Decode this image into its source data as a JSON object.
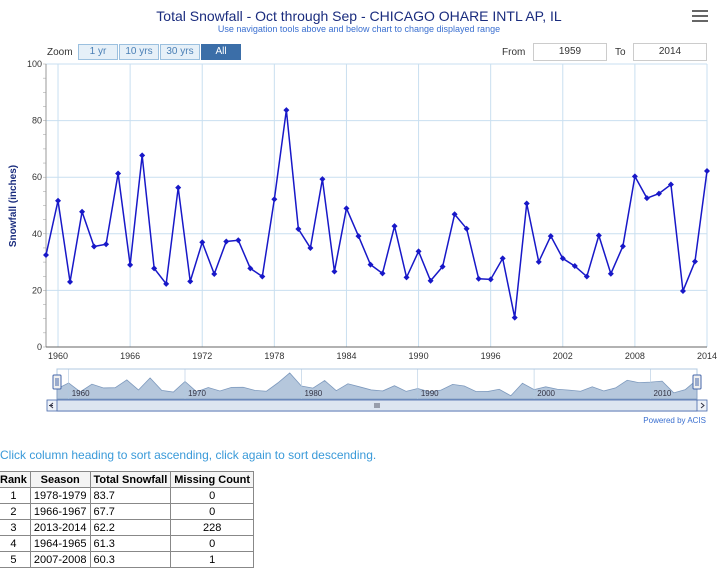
{
  "header": {
    "title": "Total Snowfall - Oct through Sep - CHICAGO OHARE INTL AP, IL",
    "subtitle": "Use navigation tools above and below chart to change displayed range"
  },
  "menu": {
    "icon": "hamburger-menu-icon"
  },
  "zoom": {
    "label": "Zoom",
    "buttons": [
      "1 yr",
      "10 yrs",
      "30 yrs",
      "All"
    ],
    "selected": "All"
  },
  "range": {
    "from_label": "From",
    "from_value": "1959",
    "to_label": "To",
    "to_value": "2014"
  },
  "colors": {
    "series": "#1818c8",
    "navigator_fill": "#b5c7dc",
    "grid": "#c9dff0",
    "accent": "#3a6fd0"
  },
  "chart_data": {
    "type": "line",
    "ylabel": "Snowfall (inches)",
    "ylim": [
      0,
      100
    ],
    "yticks": [
      0,
      20,
      40,
      60,
      80,
      100
    ],
    "xlim": [
      1959,
      2014
    ],
    "xticks": [
      1960,
      1966,
      1972,
      1978,
      1984,
      1990,
      1996,
      2002,
      2008,
      2014
    ],
    "navigator_xticks": [
      1960,
      1970,
      1980,
      1990,
      2000,
      2010
    ],
    "grid": true,
    "series": [
      {
        "x": [
          1959,
          1960,
          1961,
          1962,
          1963,
          1964,
          1965,
          1966,
          1967,
          1968,
          1969,
          1970,
          1971,
          1972,
          1973,
          1974,
          1975,
          1976,
          1977,
          1978,
          1979,
          1980,
          1981,
          1982,
          1983,
          1984,
          1985,
          1986,
          1987,
          1988,
          1989,
          1990,
          1991,
          1992,
          1993,
          1994,
          1995,
          1996,
          1997,
          1998,
          1999,
          2000,
          2001,
          2002,
          2003,
          2004,
          2005,
          2006,
          2007,
          2008,
          2009,
          2010,
          2011,
          2012,
          2013,
          2014
        ],
        "values": [
          32.5,
          51.7,
          23.0,
          47.8,
          35.5,
          36.3,
          61.3,
          29.0,
          67.7,
          27.8,
          22.3,
          56.3,
          23.2,
          37.0,
          25.8,
          37.3,
          37.7,
          27.8,
          24.9,
          52.2,
          83.7,
          41.7,
          35.0,
          59.3,
          26.7,
          49.0,
          39.2,
          29.1,
          26.0,
          42.7,
          24.6,
          33.8,
          23.4,
          28.4,
          46.9,
          41.8,
          24.1,
          23.9,
          31.3,
          10.4,
          50.7,
          30.1,
          39.2,
          31.3,
          28.6,
          24.9,
          39.4,
          25.9,
          35.6,
          60.3,
          52.6,
          54.2,
          57.4,
          19.8,
          30.2,
          62.2
        ]
      }
    ],
    "powered_by": "Powered by ACIS"
  },
  "table": {
    "instruction": "Click column heading to sort ascending, click again to sort descending.",
    "headers": [
      "Rank",
      "Season",
      "Total Snowfall",
      "Missing Count"
    ],
    "rows": [
      [
        "1",
        "1978-1979",
        "83.7",
        "0"
      ],
      [
        "2",
        "1966-1967",
        "67.7",
        "0"
      ],
      [
        "3",
        "2013-2014",
        "62.2",
        "228"
      ],
      [
        "4",
        "1964-1965",
        "61.3",
        "0"
      ],
      [
        "5",
        "2007-2008",
        "60.3",
        "1"
      ]
    ]
  }
}
